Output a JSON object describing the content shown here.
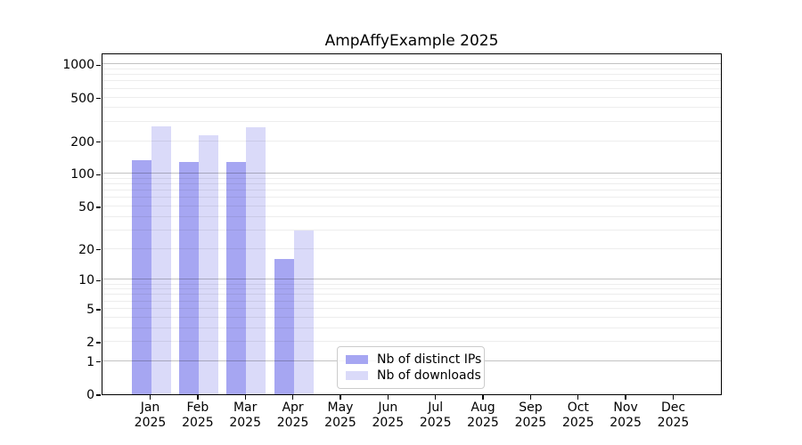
{
  "title": "AmpAffyExample 2025",
  "chart_data": {
    "type": "bar",
    "title": "AmpAffyExample 2025",
    "categories": [
      "Jan",
      "Feb",
      "Mar",
      "Apr",
      "May",
      "Jun",
      "Jul",
      "Aug",
      "Sep",
      "Oct",
      "Nov",
      "Dec"
    ],
    "year_label": "2025",
    "series": [
      {
        "name": "Nb of distinct IPs",
        "color": "#a6a6f2",
        "values": [
          134,
          128,
          128,
          16,
          0,
          0,
          0,
          0,
          0,
          0,
          0,
          0
        ]
      },
      {
        "name": "Nb of downloads",
        "color": "#dadaf9",
        "values": [
          270,
          225,
          265,
          30,
          0,
          0,
          0,
          0,
          0,
          0,
          0,
          0
        ]
      }
    ],
    "yscale": "log1p",
    "ylim": [
      0,
      1282
    ],
    "y_ticks": [
      0,
      1,
      2,
      5,
      10,
      20,
      50,
      100,
      200,
      500,
      1000
    ],
    "major_gridlines": [
      1,
      10,
      100,
      1000
    ],
    "minor_gridlines": [
      2,
      3,
      4,
      5,
      6,
      7,
      8,
      9,
      20,
      30,
      40,
      50,
      60,
      70,
      80,
      90,
      200,
      300,
      400,
      500,
      600,
      700,
      800,
      900
    ],
    "grid": true,
    "grid_above_bars": true,
    "legend": {
      "position": "lower-center",
      "entries": [
        "Nb of distinct IPs",
        "Nb of downloads"
      ]
    }
  }
}
